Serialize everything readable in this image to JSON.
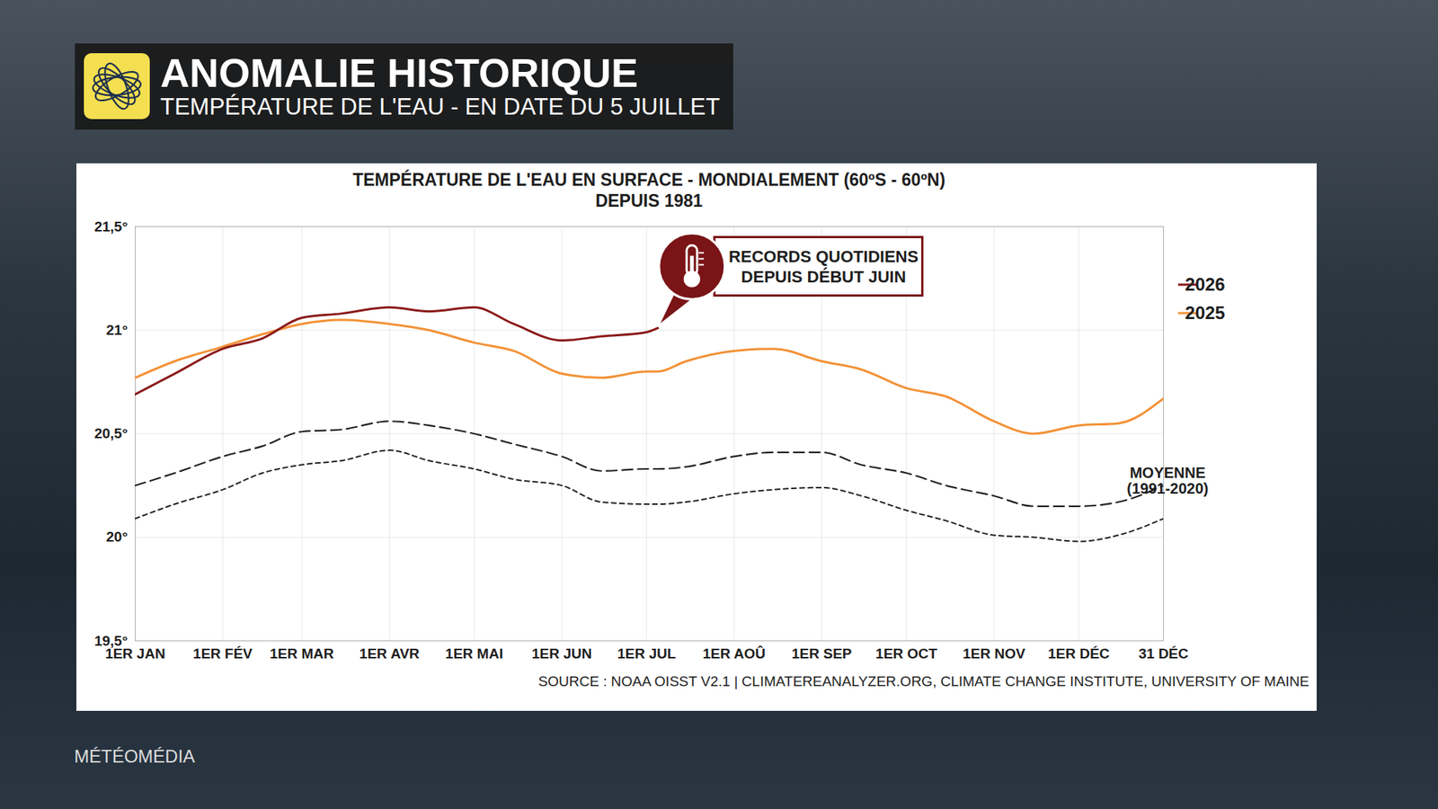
{
  "header": {
    "title": "ANOMALIE HISTORIQUE",
    "subtitle": "TEMPÉRATURE DE L'EAU - EN DATE DU 5 JUILLET"
  },
  "footer": "MÉTÉOMÉDIA",
  "chart_data": {
    "type": "line",
    "title": "TEMPÉRATURE DE L'EAU EN SURFACE - MONDIALEMENT (60ºS - 60ºN)",
    "subtitle": "DEPUIS 1981",
    "source": "SOURCE : NOAA OISST V2.1 | CLIMATEREANALYZER.ORG, CLIMATE CHANGE INSTITUTE, UNIVERSITY OF MAINE",
    "annotation": {
      "series": "2026",
      "lines": [
        "RECORDS QUOTIDIENS",
        "DEPUIS DÉBUT JUIN"
      ]
    },
    "x": [
      1,
      15,
      32,
      46,
      60,
      74,
      91,
      105,
      121,
      135,
      152,
      166,
      182,
      186,
      196,
      213,
      227,
      244,
      258,
      274,
      288,
      305,
      319,
      335,
      349,
      365
    ],
    "xlim": [
      1,
      365
    ],
    "xticks": [
      {
        "value": 1,
        "label": "1ER JAN"
      },
      {
        "value": 32,
        "label": "1ER FÉV"
      },
      {
        "value": 60,
        "label": "1ER MAR"
      },
      {
        "value": 91,
        "label": "1ER AVR"
      },
      {
        "value": 121,
        "label": "1ER MAI"
      },
      {
        "value": 152,
        "label": "1ER JUN"
      },
      {
        "value": 182,
        "label": "1ER JUL"
      },
      {
        "value": 213,
        "label": "1ER AOÛ"
      },
      {
        "value": 244,
        "label": "1ER SEP"
      },
      {
        "value": 274,
        "label": "1ER OCT"
      },
      {
        "value": 305,
        "label": "1ER NOV"
      },
      {
        "value": 335,
        "label": "1ER DÉC"
      },
      {
        "value": 365,
        "label": "31 DÉC"
      }
    ],
    "ylim": [
      19.5,
      21.5
    ],
    "yticks": [
      {
        "value": 19.5,
        "label": "19,5°"
      },
      {
        "value": 20,
        "label": "20°"
      },
      {
        "value": 20.5,
        "label": "20,5°"
      },
      {
        "value": 21,
        "label": "21°"
      },
      {
        "value": 21.5,
        "label": "21,5°"
      }
    ],
    "grid": true,
    "legend": "right",
    "series": [
      {
        "name": "2026",
        "color": "#8b1a1a",
        "line_style": "solid",
        "values": [
          20.69,
          20.79,
          20.91,
          20.96,
          21.06,
          21.08,
          21.11,
          21.09,
          21.11,
          21.03,
          20.95,
          20.97,
          20.99,
          21.01,
          null,
          null,
          null,
          null,
          null,
          null,
          null,
          null,
          null,
          null,
          null,
          null
        ]
      },
      {
        "name": "2025",
        "color": "#f39237",
        "line_style": "solid",
        "values": [
          20.77,
          20.85,
          20.92,
          20.98,
          21.03,
          21.05,
          21.03,
          21.0,
          20.94,
          20.9,
          20.79,
          20.77,
          20.8,
          20.8,
          20.85,
          20.9,
          20.91,
          20.85,
          20.81,
          20.72,
          20.68,
          20.56,
          20.5,
          20.54,
          20.55,
          20.67
        ]
      },
      {
        "name": "MOYENNE (1991-2020)",
        "color": "#222222",
        "line_style": "long-dashed",
        "values": [
          20.25,
          20.31,
          20.39,
          20.44,
          20.51,
          20.52,
          20.56,
          20.54,
          20.5,
          20.45,
          20.39,
          20.32,
          20.33,
          20.33,
          20.34,
          20.39,
          20.41,
          20.41,
          20.35,
          20.31,
          20.25,
          20.2,
          20.15,
          20.15,
          20.17,
          20.25
        ]
      },
      {
        "color": "#222222",
        "line_style": "dashed",
        "values": [
          20.09,
          20.16,
          20.23,
          20.31,
          20.35,
          20.37,
          20.42,
          20.37,
          20.33,
          20.28,
          20.25,
          20.17,
          20.16,
          20.16,
          20.17,
          20.21,
          20.23,
          20.24,
          20.2,
          20.13,
          20.08,
          20.01,
          20.0,
          19.98,
          20.01,
          20.09
        ]
      }
    ]
  }
}
